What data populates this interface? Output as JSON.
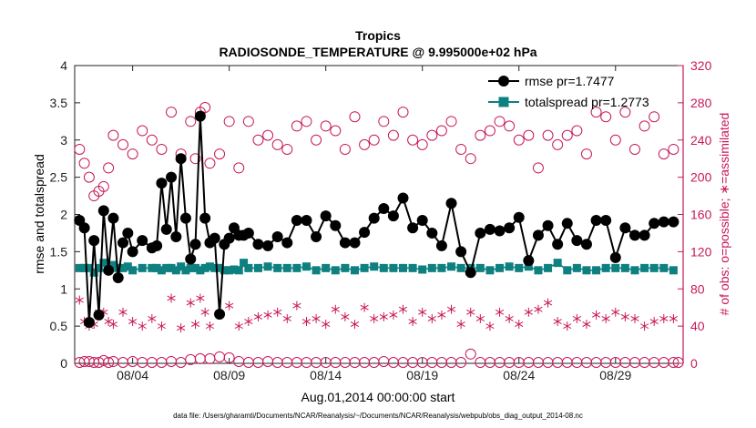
{
  "chart_data": {
    "type": "line",
    "title": "Tropics",
    "subtitle": "RADIOSONDE_TEMPERATURE @ 9.995000e+02 hPa",
    "xlabel": "Aug.01,2014 00:00:00 start",
    "ylabel_left": "rmse and totalspread",
    "ylabel_right": "# of obs: o=possible; ∗=assimilated",
    "xlim": [
      1,
      32.5
    ],
    "ylim_left": [
      0,
      4
    ],
    "ylim_right": [
      0,
      320
    ],
    "x_ticks": [
      4,
      9,
      14,
      19,
      24,
      29
    ],
    "x_tick_labels": [
      "08/04",
      "08/09",
      "08/14",
      "08/19",
      "08/24",
      "08/29"
    ],
    "y_ticks_left": [
      0,
      0.5,
      1,
      1.5,
      2,
      2.5,
      3,
      3.5,
      4
    ],
    "y_tick_labels_left": [
      "0",
      "0.5",
      "1",
      "1.5",
      "2",
      "2.5",
      "3",
      "3.5",
      "4"
    ],
    "y_ticks_right": [
      0,
      40,
      80,
      120,
      160,
      200,
      240,
      280,
      320
    ],
    "y_tick_labels_right": [
      "0",
      "40",
      "80",
      "120",
      "160",
      "200",
      "240",
      "280",
      "320"
    ],
    "legend_position": "top-right",
    "footer": "data file: /Users/gharamti/Documents/NCAR/Reanalysis/~/Documents/NCAR/Reanalysis/webpub/obs_diag_output_2014-08.nc",
    "colors": {
      "rmse": "#000000",
      "spread": "#0e8080",
      "obs": "#c8185a"
    },
    "series": [
      {
        "name": "rmse",
        "legend": "rmse pr=1.7477",
        "x": [
          1.25,
          1.5,
          1.75,
          2.0,
          2.25,
          2.5,
          2.75,
          3.0,
          3.25,
          3.5,
          3.75,
          4.0,
          4.5,
          5.0,
          5.25,
          5.5,
          5.75,
          6.0,
          6.25,
          6.5,
          6.75,
          7.0,
          7.25,
          7.5,
          7.75,
          8.0,
          8.25,
          8.5,
          8.75,
          9.0,
          9.25,
          9.5,
          9.75,
          10.0,
          10.5,
          11.0,
          11.5,
          12.0,
          12.5,
          13.0,
          13.5,
          14.0,
          14.5,
          15.0,
          15.5,
          16.0,
          16.5,
          17.0,
          17.5,
          18.0,
          18.5,
          19.0,
          19.5,
          20.0,
          20.5,
          21.0,
          21.5,
          22.0,
          22.5,
          23.0,
          23.5,
          24.0,
          24.5,
          25.0,
          25.5,
          26.0,
          26.5,
          27.0,
          27.5,
          28.0,
          28.5,
          29.0,
          29.5,
          30.0,
          30.5,
          31.0,
          31.5,
          32.0
        ],
        "values": [
          1.92,
          1.82,
          0.55,
          1.65,
          0.65,
          2.05,
          1.25,
          1.95,
          1.15,
          1.62,
          1.75,
          1.5,
          1.65,
          1.55,
          1.58,
          2.42,
          1.8,
          2.5,
          1.7,
          2.75,
          1.95,
          1.4,
          1.6,
          3.32,
          1.95,
          1.62,
          1.68,
          0.66,
          1.6,
          1.68,
          1.82,
          1.72,
          1.72,
          1.75,
          1.6,
          1.58,
          1.7,
          1.62,
          1.92,
          1.92,
          1.7,
          1.98,
          1.85,
          1.62,
          1.62,
          1.76,
          1.95,
          2.08,
          1.98,
          2.22,
          1.82,
          1.92,
          1.75,
          1.58,
          2.15,
          1.5,
          1.22,
          1.75,
          1.8,
          1.78,
          1.82,
          1.96,
          1.38,
          1.72,
          1.85,
          1.6,
          1.88,
          1.65,
          1.6,
          1.92,
          1.92,
          1.42,
          1.82,
          1.72,
          1.72,
          1.88,
          1.9,
          1.9
        ]
      },
      {
        "name": "totalspread",
        "legend": "totalspread pr=1.2773",
        "x": [
          1.25,
          1.5,
          1.75,
          2.0,
          2.25,
          2.5,
          2.75,
          3.0,
          3.25,
          3.5,
          3.75,
          4.0,
          4.5,
          5.0,
          5.25,
          5.5,
          5.75,
          6.0,
          6.25,
          6.5,
          6.75,
          7.0,
          7.25,
          7.5,
          7.75,
          8.0,
          8.25,
          8.5,
          8.75,
          9.0,
          9.25,
          9.5,
          9.75,
          10.0,
          10.5,
          11.0,
          11.5,
          12.0,
          12.5,
          13.0,
          13.5,
          14.0,
          14.5,
          15.0,
          15.5,
          16.0,
          16.5,
          17.0,
          17.5,
          18.0,
          18.5,
          19.0,
          19.5,
          20.0,
          20.5,
          21.0,
          21.5,
          22.0,
          22.5,
          23.0,
          23.5,
          24.0,
          24.5,
          25.0,
          25.5,
          26.0,
          26.5,
          27.0,
          27.5,
          28.0,
          28.5,
          29.0,
          29.5,
          30.0,
          30.5,
          31.0,
          31.5,
          32.0
        ],
        "values": [
          1.28,
          1.28,
          1.28,
          1.22,
          1.28,
          1.35,
          1.28,
          1.32,
          1.28,
          1.28,
          1.3,
          1.25,
          1.28,
          1.28,
          1.28,
          1.25,
          1.28,
          1.28,
          1.25,
          1.3,
          1.25,
          1.28,
          1.28,
          1.25,
          1.28,
          1.3,
          1.28,
          1.28,
          1.25,
          1.25,
          1.26,
          1.25,
          1.35,
          1.28,
          1.28,
          1.3,
          1.28,
          1.28,
          1.28,
          1.3,
          1.25,
          1.28,
          1.25,
          1.28,
          1.25,
          1.28,
          1.3,
          1.28,
          1.28,
          1.28,
          1.28,
          1.26,
          1.28,
          1.28,
          1.3,
          1.28,
          1.28,
          1.28,
          1.25,
          1.28,
          1.3,
          1.28,
          1.3,
          1.25,
          1.28,
          1.35,
          1.25,
          1.28,
          1.25,
          1.25,
          1.28,
          1.28,
          1.28,
          1.25,
          1.28,
          1.28,
          1.28,
          1.25
        ]
      },
      {
        "name": "obs_possible",
        "marker": "circle",
        "x": [
          1.25,
          1.5,
          1.75,
          2.0,
          2.25,
          2.5,
          2.75,
          3.0,
          3.5,
          4.0,
          4.5,
          5.0,
          5.5,
          6.0,
          6.5,
          7.0,
          7.25,
          7.5,
          7.75,
          8.0,
          8.5,
          9.0,
          9.5,
          10.0,
          10.5,
          11.0,
          11.5,
          12.0,
          12.5,
          13.0,
          13.5,
          14.0,
          14.5,
          15.0,
          15.5,
          16.0,
          16.5,
          17.0,
          17.5,
          18.0,
          18.5,
          19.0,
          19.5,
          20.0,
          20.5,
          21.0,
          21.5,
          22.0,
          22.5,
          23.0,
          23.5,
          24.0,
          24.5,
          25.0,
          25.5,
          26.0,
          26.5,
          27.0,
          27.5,
          28.0,
          28.5,
          29.0,
          29.5,
          30.0,
          30.5,
          31.0,
          31.5,
          32.0
        ],
        "values": [
          230,
          215,
          200,
          180,
          185,
          190,
          210,
          245,
          235,
          225,
          250,
          240,
          230,
          270,
          225,
          260,
          220,
          270,
          275,
          215,
          225,
          260,
          210,
          260,
          240,
          245,
          235,
          230,
          255,
          260,
          240,
          255,
          250,
          230,
          265,
          235,
          240,
          260,
          245,
          270,
          240,
          235,
          245,
          250,
          260,
          230,
          220,
          245,
          250,
          260,
          255,
          240,
          245,
          210,
          245,
          235,
          245,
          250,
          225,
          270,
          265,
          240,
          270,
          230,
          255,
          265,
          225,
          230
        ]
      },
      {
        "name": "obs_assimilated",
        "marker": "asterisk",
        "x": [
          1.25,
          1.5,
          1.75,
          2.0,
          2.25,
          2.5,
          2.75,
          3.0,
          3.5,
          4.0,
          4.5,
          5.0,
          5.5,
          6.0,
          6.5,
          7.0,
          7.25,
          7.5,
          7.75,
          8.0,
          8.5,
          9.0,
          9.5,
          10.0,
          10.5,
          11.0,
          11.5,
          12.0,
          12.5,
          13.0,
          13.5,
          14.0,
          14.5,
          15.0,
          15.5,
          16.0,
          16.5,
          17.0,
          17.5,
          18.0,
          18.5,
          19.0,
          19.5,
          20.0,
          20.5,
          21.0,
          21.5,
          22.0,
          22.5,
          23.0,
          23.5,
          24.0,
          24.5,
          25.0,
          25.5,
          26.0,
          26.5,
          27.0,
          27.5,
          28.0,
          28.5,
          29.0,
          29.5,
          30.0,
          30.5,
          31.0,
          31.5,
          32.0
        ],
        "values": [
          68,
          45,
          40,
          42,
          55,
          55,
          45,
          42,
          55,
          45,
          40,
          48,
          40,
          70,
          38,
          65,
          42,
          70,
          55,
          40,
          52,
          62,
          40,
          45,
          50,
          52,
          55,
          48,
          62,
          45,
          48,
          42,
          58,
          50,
          42,
          60,
          48,
          50,
          52,
          58,
          45,
          55,
          48,
          52,
          58,
          42,
          55,
          48,
          40,
          55,
          48,
          42,
          55,
          58,
          65,
          45,
          40,
          48,
          42,
          52,
          48,
          55,
          50,
          48,
          40,
          45,
          48,
          48
        ]
      },
      {
        "name": "obs_rejected_near_zero",
        "marker": "circle",
        "x": [
          1.25,
          1.5,
          1.75,
          2.0,
          2.25,
          2.5,
          2.75,
          3.0,
          3.5,
          4.0,
          4.5,
          5.0,
          5.5,
          6.0,
          6.5,
          7.0,
          7.5,
          8.0,
          8.5,
          9.0,
          9.5,
          10.0,
          10.5,
          11.0,
          11.5,
          12.0,
          12.5,
          13.0,
          13.5,
          14.0,
          14.5,
          15.0,
          15.5,
          16.0,
          16.5,
          17.0,
          17.5,
          18.0,
          18.5,
          19.0,
          19.5,
          20.0,
          20.5,
          21.0,
          21.5,
          22.0,
          22.5,
          23.0,
          23.5,
          24.0,
          24.5,
          25.0,
          25.5,
          26.0,
          26.5,
          27.0,
          27.5,
          28.0,
          28.5,
          29.0,
          29.5,
          30.0,
          30.5,
          31.0,
          31.5,
          32.0,
          32.25
        ],
        "values": [
          1,
          2,
          2,
          1,
          1,
          3,
          1,
          2,
          1,
          2,
          1,
          1,
          1,
          2,
          1,
          4,
          5,
          5,
          7,
          6,
          2,
          1,
          1,
          2,
          1,
          1,
          1,
          1,
          1,
          1,
          1,
          1,
          1,
          1,
          1,
          2,
          1,
          1,
          1,
          1,
          1,
          1,
          1,
          1,
          10,
          1,
          1,
          1,
          1,
          1,
          1,
          1,
          1,
          1,
          1,
          1,
          1,
          1,
          1,
          1,
          1,
          1,
          1,
          1,
          1,
          1,
          1
        ]
      }
    ]
  }
}
